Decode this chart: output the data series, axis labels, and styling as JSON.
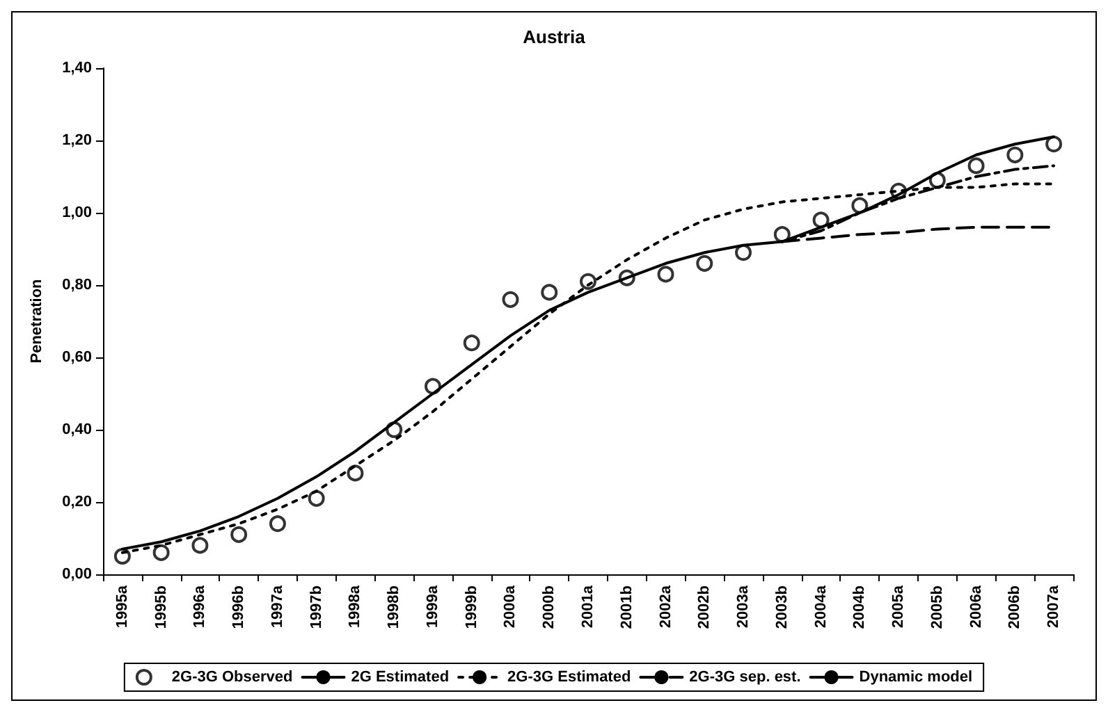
{
  "chart_data": {
    "type": "line",
    "title": "Austria",
    "ylabel": "Penetration",
    "categories": [
      "1995a",
      "1995b",
      "1996a",
      "1996b",
      "1997a",
      "1997b",
      "1998a",
      "1998b",
      "1999a",
      "1999b",
      "2000a",
      "2000b",
      "2001a",
      "2001b",
      "2002a",
      "2002b",
      "2003a",
      "2003b",
      "2004a",
      "2004b",
      "2005a",
      "2005b",
      "2006a",
      "2006b",
      "2007a"
    ],
    "series": [
      {
        "name": "2G-3G Observed",
        "type": "scatter",
        "marker": "circle",
        "color": "#000000",
        "values": [
          0.05,
          0.06,
          0.08,
          0.11,
          0.14,
          0.21,
          0.28,
          0.4,
          0.52,
          0.64,
          0.76,
          0.78,
          0.81,
          0.82,
          0.83,
          0.86,
          0.89,
          0.94,
          0.98,
          1.02,
          1.06,
          1.09,
          1.13,
          1.16,
          1.19
        ]
      },
      {
        "name": "2G Estimated",
        "line_style": "dashed",
        "color": "#000000",
        "values": [
          null,
          null,
          null,
          null,
          null,
          null,
          null,
          null,
          null,
          null,
          null,
          null,
          null,
          null,
          null,
          null,
          null,
          0.92,
          0.93,
          0.94,
          0.945,
          0.955,
          0.96,
          0.96,
          0.96
        ]
      },
      {
        "name": "2G-3G Estimated",
        "line_style": "dotted",
        "color": "#000000",
        "values": [
          0.06,
          0.08,
          0.11,
          0.14,
          0.18,
          0.23,
          0.3,
          0.37,
          0.45,
          0.54,
          0.63,
          0.72,
          0.8,
          0.87,
          0.93,
          0.98,
          1.01,
          1.03,
          1.04,
          1.05,
          1.06,
          1.07,
          1.07,
          1.08,
          1.08
        ]
      },
      {
        "name": "2G-3G sep. est.",
        "line_style": "dashdot",
        "color": "#000000",
        "values": [
          null,
          null,
          null,
          null,
          null,
          null,
          null,
          null,
          null,
          null,
          null,
          null,
          null,
          null,
          null,
          null,
          null,
          0.92,
          0.95,
          1.0,
          1.04,
          1.07,
          1.1,
          1.12,
          1.13
        ]
      },
      {
        "name": "Dynamic model",
        "line_style": "solid",
        "color": "#000000",
        "values": [
          0.07,
          0.09,
          0.12,
          0.16,
          0.21,
          0.27,
          0.34,
          0.42,
          0.5,
          0.58,
          0.66,
          0.73,
          0.78,
          0.82,
          0.86,
          0.89,
          0.91,
          0.92,
          0.96,
          1.0,
          1.05,
          1.11,
          1.16,
          1.19,
          1.21
        ]
      }
    ],
    "ylim": [
      0,
      1.4
    ],
    "yticks": [
      {
        "value": 0,
        "label": "0,00"
      },
      {
        "value": 0.2,
        "label": "0,20"
      },
      {
        "value": 0.4,
        "label": "0,40"
      },
      {
        "value": 0.6,
        "label": "0,60"
      },
      {
        "value": 0.8,
        "label": "0,80"
      },
      {
        "value": 1.0,
        "label": "1,00"
      },
      {
        "value": 1.2,
        "label": "1,20"
      },
      {
        "value": 1.4,
        "label": "1,40"
      }
    ],
    "grid": false,
    "legend": "bottom",
    "marker": "none"
  }
}
